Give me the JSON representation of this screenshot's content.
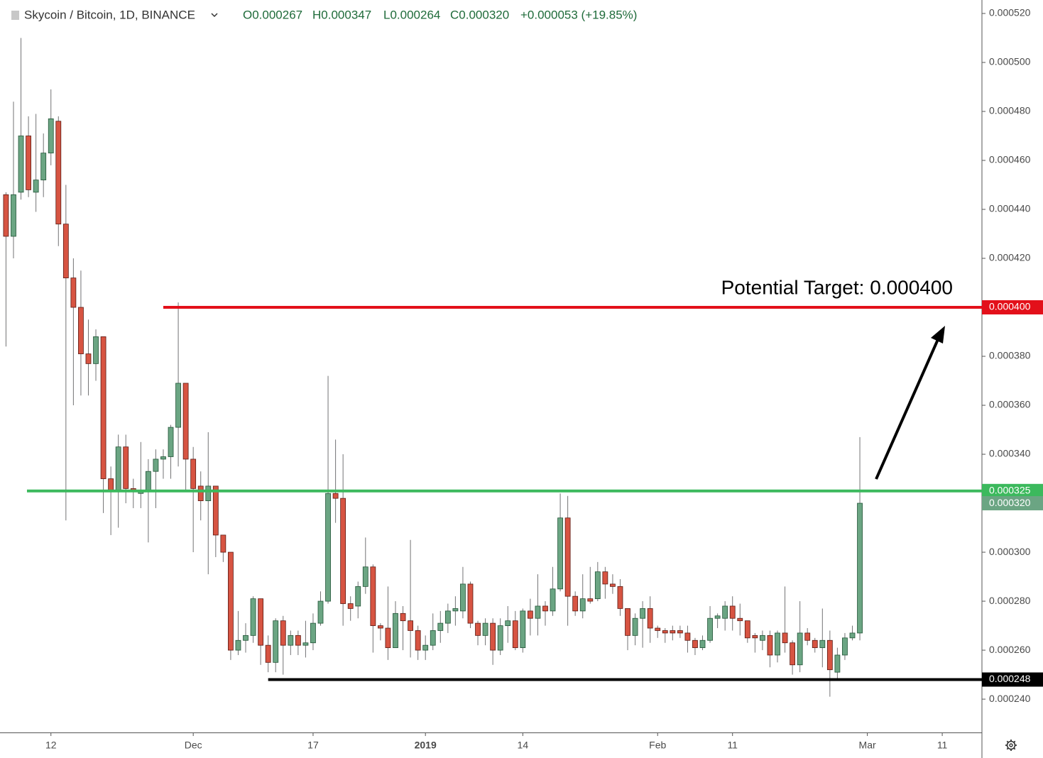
{
  "chart_data": {
    "type": "candlestick",
    "symbol": "Skycoin / Bitcoin, 1D, BINANCE",
    "ohlc_legend": [
      "O0.000267",
      "H0.000347",
      "L0.000264",
      "C0.000320",
      "+0.000053 (+19.85%)"
    ],
    "annotation": "Potential Target: 0.000400",
    "up_color": "#6ba583",
    "down_color": "#d75442",
    "open": [
      0.000446,
      0.000429,
      0.000447,
      0.00047,
      0.000447,
      0.000452,
      0.000463,
      0.000476,
      0.000434,
      0.000412,
      0.0004,
      0.000381,
      0.000377,
      0.000388,
      0.00033,
      0.000325,
      0.000343,
      0.000326,
      0.000324,
      0.000325,
      0.000333,
      0.000338,
      0.000339,
      0.000351,
      0.000369,
      0.000338,
      0.000327,
      0.000321,
      0.000327,
      0.000307,
      0.0003,
      0.00026,
      0.000264,
      0.000266,
      0.000281,
      0.000262,
      0.000255,
      0.000272,
      0.000262,
      0.000266,
      0.000262,
      0.000263,
      0.000271,
      0.00028,
      0.000324,
      0.000322,
      0.000279,
      0.000278,
      0.000286,
      0.000294,
      0.00027,
      0.000269,
      0.000261,
      0.000275,
      0.000272,
      0.000268,
      0.00026,
      0.000262,
      0.000268,
      0.000271,
      0.000276,
      0.000276,
      0.000287,
      0.000271,
      0.000266,
      0.000271,
      0.00026,
      0.00027,
      0.000272,
      0.000261,
      0.000276,
      0.000273,
      0.000278,
      0.000276,
      0.000285,
      0.000314,
      0.000282,
      0.000276,
      0.000281,
      0.000281,
      0.000292,
      0.000287,
      0.000286,
      0.000277,
      0.000266,
      0.000273,
      0.000277,
      0.000269,
      0.000268,
      0.000268,
      0.000268,
      0.000267,
      0.000264,
      0.000261,
      0.000264,
      0.000273,
      0.000273,
      0.000278,
      0.000273,
      0.000272,
      0.000266,
      0.000264,
      0.000266,
      0.000258,
      0.000267,
      0.000263,
      0.000254,
      0.000267,
      0.000264,
      0.000261,
      0.000264,
      0.000251,
      0.000258,
      0.000265,
      0.000267
    ],
    "high": [
      0.000447,
      0.000484,
      0.00051,
      0.000478,
      0.000479,
      0.000471,
      0.000489,
      0.000478,
      0.00045,
      0.00042,
      0.000415,
      0.000395,
      0.000391,
      0.000388,
      0.000335,
      0.000348,
      0.000348,
      0.00033,
      0.000345,
      0.000338,
      0.000342,
      0.000342,
      0.000352,
      0.000402,
      0.000369,
      0.000343,
      0.000333,
      0.000349,
      0.000327,
      0.000307,
      0.0003,
      0.000276,
      0.000271,
      0.000282,
      0.000281,
      0.000266,
      0.000273,
      0.000274,
      0.000268,
      0.000268,
      0.000272,
      0.000275,
      0.000284,
      0.000372,
      0.000346,
      0.00034,
      0.000282,
      0.000288,
      0.000306,
      0.000295,
      0.000271,
      0.000286,
      0.00028,
      0.000278,
      0.000305,
      0.00027,
      0.000266,
      0.000275,
      0.000276,
      0.000279,
      0.000282,
      0.000294,
      0.000288,
      0.000272,
      0.000273,
      0.000273,
      0.000273,
      0.000278,
      0.000276,
      0.000277,
      0.000281,
      0.000291,
      0.00028,
      0.000294,
      0.000324,
      0.000323,
      0.000284,
      0.000291,
      0.000294,
      0.000296,
      0.000294,
      0.000291,
      0.000289,
      0.000277,
      0.000275,
      0.00028,
      0.000282,
      0.00027,
      0.000269,
      0.00027,
      0.00027,
      0.00027,
      0.000265,
      0.000266,
      0.000278,
      0.000275,
      0.00028,
      0.000282,
      0.000279,
      0.000272,
      0.000267,
      0.000268,
      0.000268,
      0.000268,
      0.000286,
      0.000264,
      0.00028,
      0.000269,
      0.000265,
      0.000277,
      0.000268,
      0.000261,
      0.000267,
      0.00027,
      0.000347
    ],
    "low": [
      0.000384,
      0.00042,
      0.000444,
      0.000445,
      0.000439,
      0.000445,
      0.000458,
      0.000425,
      0.000313,
      0.00036,
      0.000364,
      0.000364,
      0.00037,
      0.000316,
      0.000307,
      0.00031,
      0.00032,
      0.000318,
      0.000318,
      0.000304,
      0.000318,
      0.00033,
      0.00033,
      0.000335,
      0.000325,
      0.0003,
      0.000313,
      0.000291,
      0.000298,
      0.000296,
      0.000256,
      0.000258,
      0.000259,
      0.000263,
      0.000254,
      0.000251,
      0.000251,
      0.00025,
      0.000258,
      0.000258,
      0.000257,
      0.00026,
      0.00027,
      0.000279,
      0.000312,
      0.00027,
      0.000272,
      0.000273,
      0.000283,
      0.000259,
      0.000264,
      0.000256,
      0.000261,
      0.00026,
      0.000257,
      0.000256,
      0.000256,
      0.00026,
      0.000263,
      0.000267,
      0.00027,
      0.000273,
      0.000269,
      0.000262,
      0.000262,
      0.000254,
      0.000258,
      0.000263,
      0.00026,
      0.000259,
      0.000266,
      0.000266,
      0.00027,
      0.000274,
      0.000284,
      0.00027,
      0.000274,
      0.000273,
      0.000279,
      0.00028,
      0.000281,
      0.000283,
      0.000274,
      0.00026,
      0.000262,
      0.000261,
      0.000263,
      0.000265,
      0.000263,
      0.000264,
      0.000265,
      0.000259,
      0.000258,
      0.00026,
      0.000263,
      0.000269,
      0.000268,
      0.000268,
      0.000266,
      0.000263,
      0.000259,
      0.00026,
      0.000253,
      0.000255,
      0.000259,
      0.00025,
      0.000251,
      0.000262,
      0.000259,
      0.000253,
      0.000241,
      0.000248,
      0.000256,
      0.000264,
      0.000264
    ],
    "close": [
      0.000429,
      0.000446,
      0.00047,
      0.000448,
      0.000452,
      0.000463,
      0.000477,
      0.000434,
      0.000412,
      0.0004,
      0.000381,
      0.000377,
      0.000388,
      0.00033,
      0.000325,
      0.000343,
      0.000326,
      0.000325,
      0.000325,
      0.000333,
      0.000338,
      0.000339,
      0.000351,
      0.000369,
      0.000338,
      0.000326,
      0.000321,
      0.000327,
      0.000307,
      0.0003,
      0.00026,
      0.000264,
      0.000266,
      0.000281,
      0.000262,
      0.000255,
      0.000272,
      0.000262,
      0.000266,
      0.000262,
      0.000263,
      0.000271,
      0.00028,
      0.000324,
      0.000322,
      0.000279,
      0.000277,
      0.000286,
      0.000294,
      0.00027,
      0.000269,
      0.000261,
      0.000275,
      0.000272,
      0.000268,
      0.00026,
      0.000262,
      0.000268,
      0.000271,
      0.000276,
      0.000277,
      0.000287,
      0.000271,
      0.000266,
      0.000271,
      0.00026,
      0.00027,
      0.000272,
      0.000261,
      0.000276,
      0.000273,
      0.000278,
      0.000276,
      0.000285,
      0.000314,
      0.000282,
      0.000276,
      0.000281,
      0.00028,
      0.000292,
      0.000287,
      0.000286,
      0.000277,
      0.000266,
      0.000273,
      0.000277,
      0.000269,
      0.000268,
      0.000267,
      0.000267,
      0.000267,
      0.000264,
      0.000261,
      0.000264,
      0.000273,
      0.000274,
      0.000278,
      0.000273,
      0.000272,
      0.000265,
      0.000265,
      0.000266,
      0.000258,
      0.000267,
      0.000263,
      0.000254,
      0.000267,
      0.000264,
      0.000261,
      0.000264,
      0.000252,
      0.000258,
      0.000265,
      0.000267,
      0.00032
    ],
    "xlim": [
      -0.8,
      130.3
    ],
    "xticks": [
      {
        "value": 6,
        "label": "12"
      },
      {
        "value": 25,
        "label": "Dec"
      },
      {
        "value": 41,
        "label": "17"
      },
      {
        "value": 56,
        "label": "2019"
      },
      {
        "value": 69,
        "label": "14"
      },
      {
        "value": 87,
        "label": "Feb"
      },
      {
        "value": 97,
        "label": "11"
      },
      {
        "value": 115,
        "label": "Mar"
      },
      {
        "value": 125,
        "label": "11"
      }
    ],
    "ylim": [
      0.0002264,
      0.0005255
    ],
    "yticks": [
      {
        "value": 0.00024,
        "label": "0.000240"
      },
      {
        "value": 0.00026,
        "label": "0.000260"
      },
      {
        "value": 0.00028,
        "label": "0.000280"
      },
      {
        "value": 0.0003,
        "label": "0.000300"
      },
      {
        "value": 0.00032,
        "label": "0.000320"
      },
      {
        "value": 0.00034,
        "label": "0.000340"
      },
      {
        "value": 0.00036,
        "label": "0.000360"
      },
      {
        "value": 0.00038,
        "label": "0.000380"
      },
      {
        "value": 0.0004,
        "label": "0.000400"
      },
      {
        "value": 0.00042,
        "label": "0.000420"
      },
      {
        "value": 0.00044,
        "label": "0.000440"
      },
      {
        "value": 0.00046,
        "label": "0.000460"
      },
      {
        "value": 0.00048,
        "label": "0.000480"
      },
      {
        "value": 0.0005,
        "label": "0.000500"
      },
      {
        "value": 0.00052,
        "label": "0.000520"
      }
    ],
    "levels": [
      {
        "value": 0.0004,
        "label": "0.000400",
        "color": "#e3101a",
        "start": 21
      },
      {
        "value": 0.000325,
        "label": "0.000325",
        "color": "#3cb95d",
        "start": 2.8
      },
      {
        "value": 0.000248,
        "label": "0.000248",
        "color": "#000000",
        "start": 35
      }
    ],
    "price_tag": {
      "value": 0.00032,
      "label": "0.000320",
      "color": "#6ba583"
    }
  }
}
